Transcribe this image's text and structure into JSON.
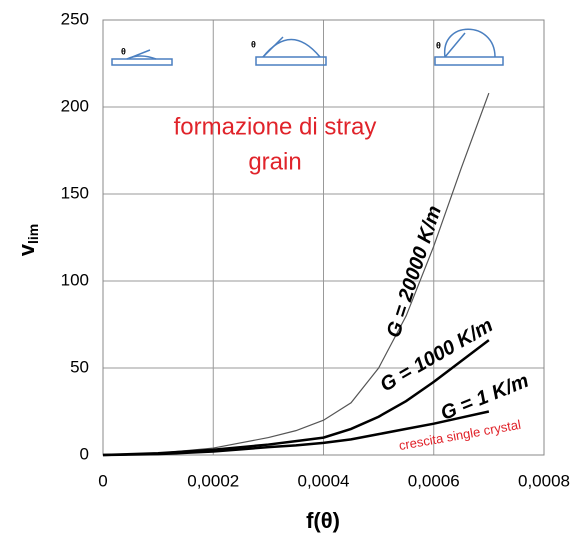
{
  "chart_data": {
    "type": "line",
    "xlabel": "f(θ)",
    "ylabel": "v",
    "ylabel_subscript": "lim",
    "xlim": [
      0,
      0.0008
    ],
    "ylim": [
      0,
      250
    ],
    "xticks": [
      {
        "value": 0,
        "label": "0"
      },
      {
        "value": 0.0002,
        "label": "0,0002"
      },
      {
        "value": 0.0004,
        "label": "0,0004"
      },
      {
        "value": 0.0006,
        "label": "0,0006"
      },
      {
        "value": 0.0008,
        "label": "0,0008"
      }
    ],
    "yticks": [
      0,
      50,
      100,
      150,
      200,
      250
    ],
    "grid": true,
    "x": [
      0,
      0.0001,
      0.0002,
      0.0003,
      0.00035,
      0.0004,
      0.00045,
      0.0005,
      0.00055,
      0.0006,
      0.00065,
      0.0007
    ],
    "series": [
      {
        "name": "G = 20000 K/m",
        "color": "#555555",
        "values": [
          0,
          1,
          4,
          10,
          14,
          20,
          30,
          50,
          80,
          120,
          165,
          208
        ]
      },
      {
        "name": "G = 1000 K/m",
        "color": "#000000",
        "values": [
          0,
          1,
          3,
          6,
          8,
          10,
          15,
          22,
          31,
          42,
          54,
          66
        ]
      },
      {
        "name": "G = 1 K/m",
        "color": "#000000",
        "values": [
          0,
          0.5,
          2,
          4.5,
          5.5,
          7,
          9,
          12,
          15,
          18,
          21.5,
          25
        ]
      }
    ],
    "annotations": [
      "formazione di stray",
      "grain",
      "crescita single crystal"
    ],
    "icon_labels": [
      "θ",
      "θ",
      "θ"
    ]
  }
}
